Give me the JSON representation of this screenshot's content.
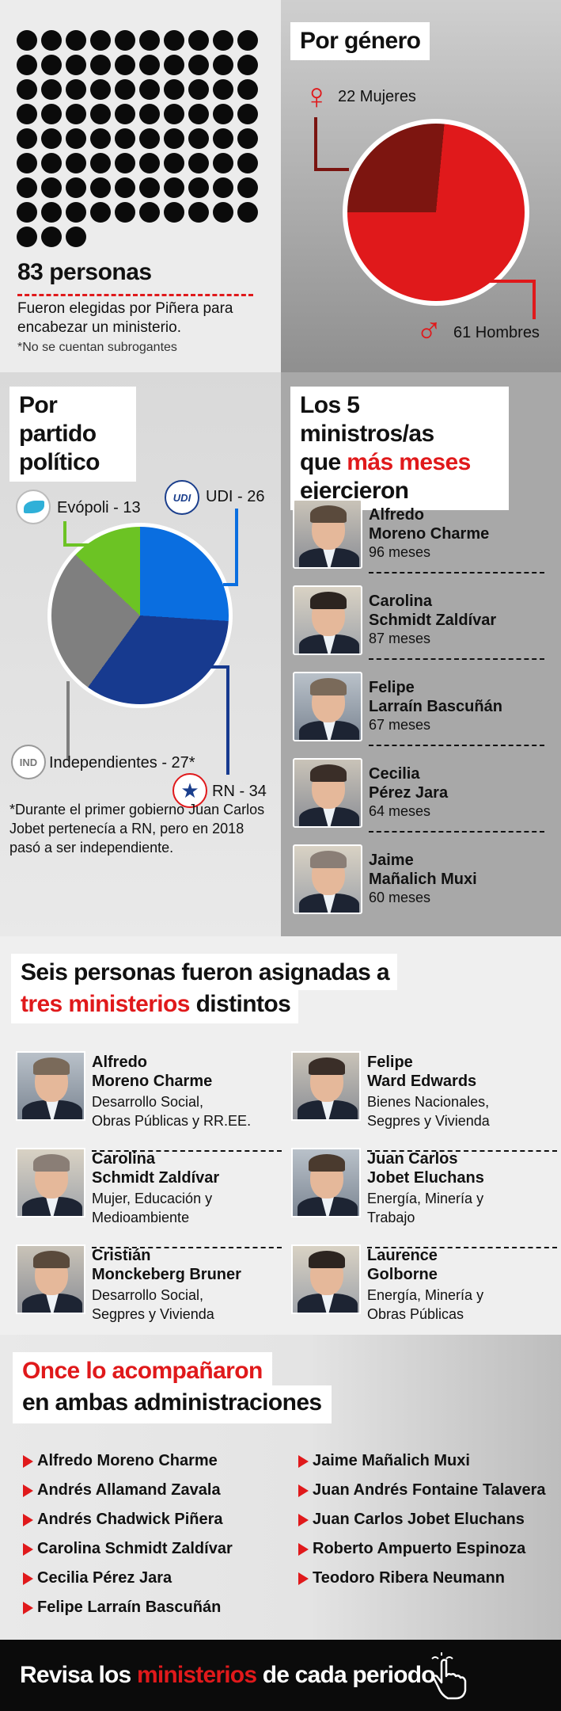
{
  "hero": {
    "count": "83 personas",
    "desc": "Fueron elegidas por Piñera para encabezar un ministerio.",
    "note": "*No se cuentan subrogantes",
    "dots": 83
  },
  "gender": {
    "title": "Por género",
    "women_label": "22 Mujeres",
    "men_label": "61 Hombres",
    "women_symbol": "♀",
    "men_symbol": "♂",
    "chart_data": {
      "type": "pie",
      "categories": [
        "Mujeres",
        "Hombres"
      ],
      "values": [
        22,
        61
      ],
      "colors": [
        "#7d1510",
        "#e0191b"
      ]
    }
  },
  "party": {
    "title_line1": "Por partido",
    "title_line2": "político",
    "labels": {
      "evopoli": "Evópoli - 13",
      "udi": "UDI - 26",
      "ind": "Independientes - 27*",
      "rn": "RN - 34"
    },
    "logos": {
      "udi": "UDI",
      "ind": "IND"
    },
    "note": "*Durante el primer gobierno Juan Carlos Jobet pertenecía a RN, pero en 2018 pasó a ser independiente.",
    "chart_data": {
      "type": "pie",
      "categories": [
        "UDI",
        "RN",
        "Independientes",
        "Evópoli"
      ],
      "values": [
        26,
        34,
        27,
        13
      ],
      "colors": [
        "#0a6ee0",
        "#173a8f",
        "#7f7f7f",
        "#6cc324"
      ]
    }
  },
  "top5": {
    "title_a": "Los 5 ministros/as",
    "title_b_pre": "que ",
    "title_b_red": "más meses",
    "title_c": "ejercieron",
    "items": [
      {
        "name1": "Alfredo",
        "name2": "Moreno Charme",
        "months": "96 meses"
      },
      {
        "name1": "Carolina",
        "name2": "Schmidt Zaldívar",
        "months": "87 meses"
      },
      {
        "name1": "Felipe",
        "name2": "Larraín Bascuñán",
        "months": "67 meses"
      },
      {
        "name1": "Cecilia",
        "name2": "Pérez Jara",
        "months": "64 meses"
      },
      {
        "name1": "Jaime",
        "name2": "Mañalich Muxi",
        "months": "60 meses"
      }
    ]
  },
  "three": {
    "title_a": "Seis personas fueron asignadas a",
    "title_red": "tres ministerios",
    "title_b": " distintos",
    "items": [
      {
        "name1": "Alfredo",
        "name2": "Moreno Charme",
        "d1": "Desarrollo Social,",
        "d2": "Obras Públicas y RR.EE."
      },
      {
        "name1": "Felipe",
        "name2": "Ward Edwards",
        "d1": "Bienes Nacionales,",
        "d2": "Segpres y Vivienda"
      },
      {
        "name1": "Carolina",
        "name2": "Schmidt Zaldívar",
        "d1": "Mujer, Educación y",
        "d2": "Medioambiente"
      },
      {
        "name1": "Juan Carlos",
        "name2": "Jobet Eluchans",
        "d1": "Energía, Minería y",
        "d2": "Trabajo"
      },
      {
        "name1": "Cristián",
        "name2": "Monckeberg Bruner",
        "d1": "Desarrollo Social,",
        "d2": "Segpres y Vivienda"
      },
      {
        "name1": "Laurence",
        "name2": "Golborne",
        "d1": "Energía, Minería y",
        "d2": "Obras Públicas"
      }
    ]
  },
  "eleven": {
    "title_red": "Once lo acompañaron",
    "title_b": "en ambas administraciones",
    "left": [
      "Alfredo Moreno Charme",
      "Andrés Allamand Zavala",
      "Andrés Chadwick Piñera",
      "Carolina Schmidt Zaldívar",
      "Cecilia Pérez Jara",
      "Felipe Larraín Bascuñán"
    ],
    "right": [
      "Jaime Mañalich Muxi",
      "Juan Andrés Fontaine Talavera",
      "Juan Carlos Jobet Eluchans",
      "Roberto Ampuerto Espinoza",
      "Teodoro Ribera Neumann"
    ]
  },
  "footer": {
    "pre": "Revisa los ",
    "red": "ministerios",
    "post": " de cada periodo",
    "icon": "pointer-hand-icon"
  }
}
